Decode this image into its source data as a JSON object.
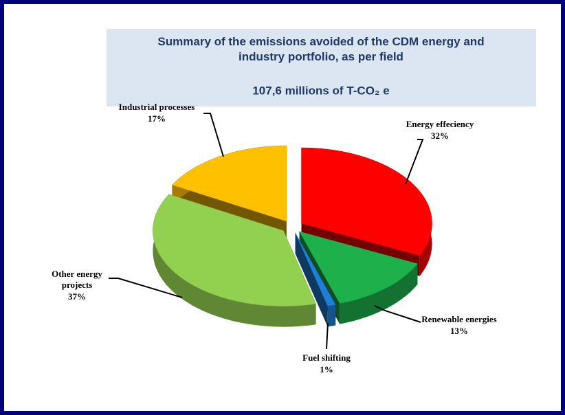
{
  "chart_data": {
    "type": "pie3d",
    "title": "Summary of the emissions avoided of the CDM energy and industry portfolio, as per field",
    "subtitle": "107,6 millions of T-CO₂ e",
    "categories": [
      "Energy effeciency",
      "Renewable energies",
      "Fuel shifting",
      "Other energy projects",
      "Industrial processes"
    ],
    "values": [
      32,
      13,
      1,
      37,
      17
    ],
    "value_labels": [
      "32%",
      "13%",
      "1%",
      "37%",
      "17%"
    ],
    "colors": [
      "#ff0000",
      "#1db04b",
      "#1f7fd8",
      "#92d050",
      "#ffc000"
    ]
  }
}
